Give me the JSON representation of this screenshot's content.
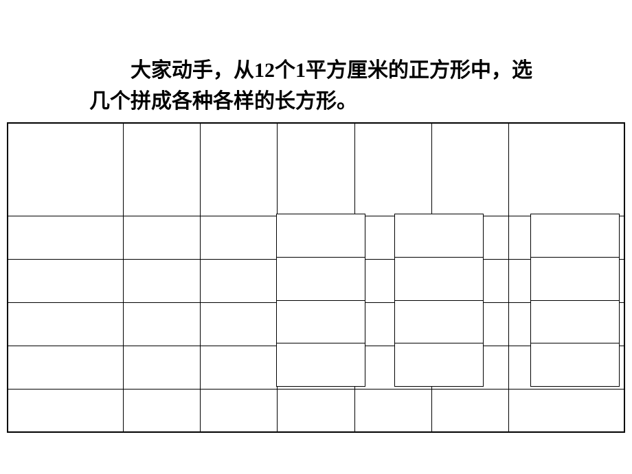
{
  "instruction": {
    "line1": "大家动手，从12个1平方厘米的正方形中，选",
    "line2": "几个拼成各种各样的长方形。"
  },
  "main_grid": {
    "type": "table",
    "cols": 7,
    "top_rows": 1,
    "bottom_rows": 5,
    "border_color": "#000000",
    "background_color": "#ffffff"
  },
  "overlay_grids": [
    {
      "rows": 4,
      "cols": 1,
      "border_color": "#000000"
    },
    {
      "rows": 4,
      "cols": 1,
      "border_color": "#000000"
    },
    {
      "rows": 4,
      "cols": 1,
      "border_color": "#000000"
    }
  ],
  "text_color": "#000000",
  "font_size_pt": 22
}
